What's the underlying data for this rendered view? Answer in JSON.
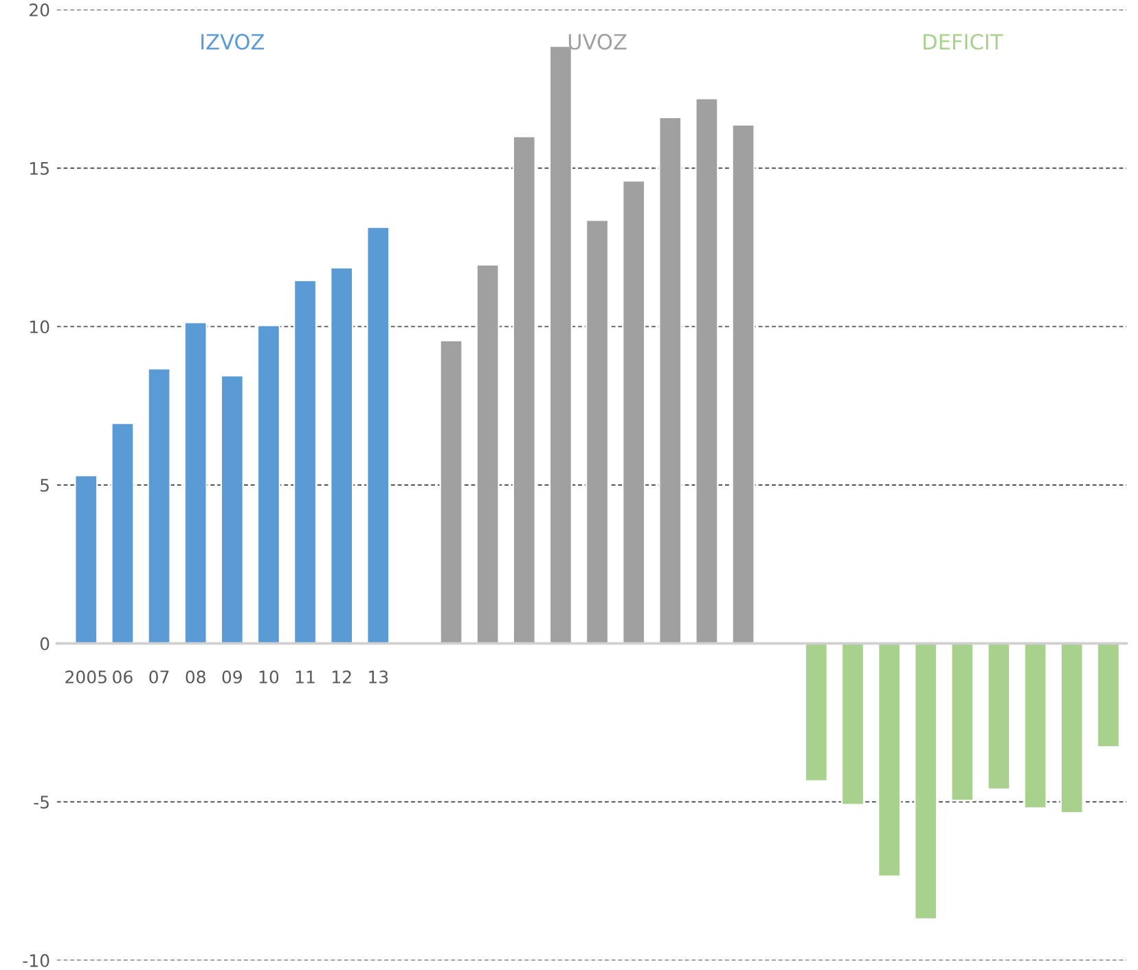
{
  "chart_data": {
    "type": "bar",
    "categories": [
      "2005",
      "06",
      "07",
      "08",
      "09",
      "10",
      "11",
      "12",
      "13",
      null,
      null,
      null,
      null,
      null,
      null,
      null,
      null,
      null,
      null,
      null,
      null,
      null,
      null,
      null,
      null,
      null,
      null,
      null,
      null
    ],
    "series": [
      {
        "name": "IZVOZ",
        "color": "#5b9bd5",
        "values": [
          5.3,
          6.95,
          8.67,
          10.13,
          8.45,
          10.04,
          11.46,
          11.86,
          13.14,
          null,
          null,
          null,
          null,
          null,
          null,
          null,
          null,
          null,
          null,
          null,
          null,
          null,
          null,
          null,
          null,
          null,
          null,
          null,
          null
        ]
      },
      {
        "name": "UVOZ",
        "color": "#a0a0a0",
        "values": [
          null,
          null,
          null,
          null,
          null,
          null,
          null,
          null,
          null,
          null,
          9.56,
          11.95,
          16.0,
          18.85,
          13.36,
          14.6,
          16.6,
          17.2,
          16.37,
          null,
          null,
          null,
          null,
          null,
          null,
          null,
          null,
          null,
          null
        ]
      },
      {
        "name": "DEFICIT",
        "color": "#a9d18e",
        "values": [
          null,
          null,
          null,
          null,
          null,
          null,
          null,
          null,
          null,
          null,
          null,
          null,
          null,
          null,
          null,
          null,
          null,
          null,
          null,
          null,
          -4.34,
          -5.09,
          -7.35,
          -8.7,
          -4.96,
          -4.6,
          -5.2,
          -5.35,
          -3.27
        ]
      }
    ],
    "ylim": [
      -10,
      20
    ],
    "yticks": [
      -10,
      -5,
      0,
      5,
      10,
      15,
      20
    ],
    "grid": "y",
    "line_style": "dashed"
  }
}
